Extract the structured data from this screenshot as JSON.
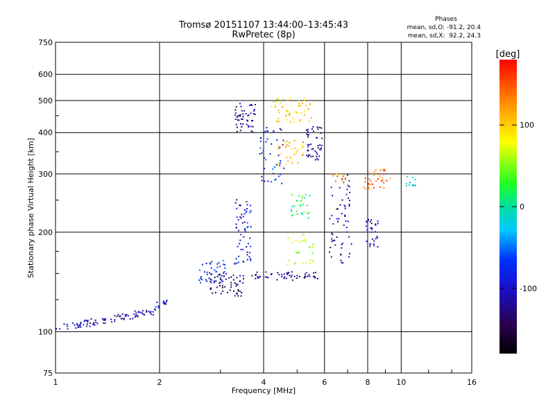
{
  "chart_data": {
    "type": "scatter",
    "title": "Tromsø 20151107 13:44:00–13:45:43",
    "subtitle": "RwPretec (8p)",
    "xlabel": "Frequency [MHz]",
    "ylabel": "Stationary phase Virtual Height [km]",
    "x_scale": "log",
    "y_scale": "log",
    "xlim": [
      1,
      16
    ],
    "ylim": [
      75,
      750
    ],
    "x_ticks": [
      "1",
      "2",
      "4",
      "6",
      "8",
      "10",
      "16"
    ],
    "y_ticks": [
      "75",
      "100",
      "200",
      "300",
      "400",
      "500",
      "600",
      "750"
    ],
    "grid": true,
    "stats": {
      "title": "Phases",
      "line_o": "mean, sd,O: -91.2, 20.4",
      "line_x": "mean, sd,X:  92.2, 24.3"
    },
    "colorbar": {
      "label": "[deg]",
      "range": [
        -180,
        180
      ],
      "ticks": [
        "100",
        "0",
        "-100"
      ]
    },
    "clusters": [
      {
        "f_min": 1.0,
        "f_max": 1.95,
        "h_min": 102,
        "h_max": 118,
        "phase": -110,
        "n": 95,
        "trend": "rising"
      },
      {
        "f_min": 1.95,
        "f_max": 2.1,
        "h_min": 118,
        "h_max": 126,
        "phase": -100,
        "n": 12
      },
      {
        "f_min": 2.6,
        "f_max": 3.1,
        "h_min": 140,
        "h_max": 165,
        "phase": -80,
        "n": 40
      },
      {
        "f_min": 2.8,
        "f_max": 3.5,
        "h_min": 128,
        "h_max": 150,
        "phase": -130,
        "n": 60
      },
      {
        "f_min": 3.3,
        "f_max": 3.7,
        "h_min": 160,
        "h_max": 260,
        "phase": -95,
        "n": 60
      },
      {
        "f_min": 3.3,
        "f_max": 3.8,
        "h_min": 400,
        "h_max": 490,
        "phase": -120,
        "n": 50
      },
      {
        "f_min": 3.7,
        "f_max": 5.8,
        "h_min": 143,
        "h_max": 152,
        "phase": -120,
        "n": 55
      },
      {
        "f_min": 3.9,
        "f_max": 4.6,
        "h_min": 280,
        "h_max": 420,
        "phase": -90,
        "n": 45
      },
      {
        "f_min": 4.2,
        "f_max": 5.5,
        "h_min": 430,
        "h_max": 510,
        "phase": 100,
        "n": 50
      },
      {
        "f_min": 4.4,
        "f_max": 5.4,
        "h_min": 320,
        "h_max": 380,
        "phase": 110,
        "n": 35
      },
      {
        "f_min": 5.3,
        "f_max": 5.9,
        "h_min": 330,
        "h_max": 420,
        "phase": -110,
        "n": 50
      },
      {
        "f_min": 4.6,
        "f_max": 5.6,
        "h_min": 160,
        "h_max": 200,
        "phase": 70,
        "n": 30
      },
      {
        "f_min": 4.8,
        "f_max": 5.5,
        "h_min": 220,
        "h_max": 260,
        "phase": 20,
        "n": 30
      },
      {
        "f_min": 6.2,
        "f_max": 7.2,
        "h_min": 160,
        "h_max": 300,
        "phase": -110,
        "n": 60
      },
      {
        "f_min": 6.3,
        "f_max": 7.0,
        "h_min": 280,
        "h_max": 300,
        "phase": 120,
        "n": 15
      },
      {
        "f_min": 7.8,
        "f_max": 9.3,
        "h_min": 270,
        "h_max": 310,
        "phase": 140,
        "n": 35
      },
      {
        "f_min": 7.9,
        "f_max": 8.6,
        "h_min": 180,
        "h_max": 220,
        "phase": -110,
        "n": 30
      },
      {
        "f_min": 10.3,
        "f_max": 11.0,
        "h_min": 275,
        "h_max": 295,
        "phase": -20,
        "n": 12
      }
    ]
  }
}
